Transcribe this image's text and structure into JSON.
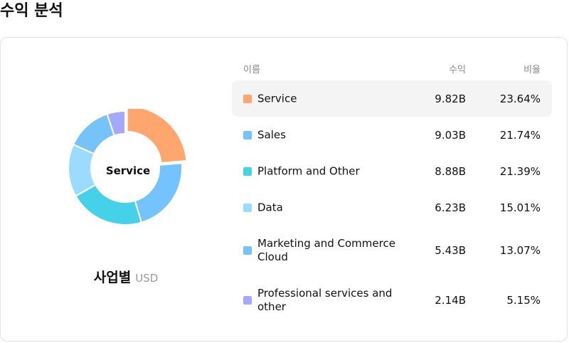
{
  "page": {
    "title": "수익 분석"
  },
  "donut": {
    "center_label": "Service"
  },
  "caption": {
    "title": "사업별",
    "unit": "USD"
  },
  "table": {
    "headers": {
      "name": "이름",
      "value": "수익",
      "share": "비율"
    }
  },
  "chart_data": {
    "type": "pie",
    "title": "",
    "categories": [
      "Service",
      "Sales",
      "Platform and Other",
      "Data",
      "Marketing and Commerce Cloud",
      "Professional services and other"
    ],
    "values": [
      9.82,
      9.03,
      8.88,
      6.23,
      5.43,
      2.14
    ],
    "value_labels": [
      "9.82B",
      "9.03B",
      "8.88B",
      "6.23B",
      "5.43B",
      "2.14B"
    ],
    "shares": [
      "23.64%",
      "21.74%",
      "21.39%",
      "15.01%",
      "13.07%",
      "5.15%"
    ],
    "share_values": [
      23.64,
      21.74,
      21.39,
      15.01,
      13.07,
      5.15
    ],
    "colors": [
      "#FFA56E",
      "#74C3FF",
      "#45D1E8",
      "#9ADBFF",
      "#76C3FA",
      "#A5A8FF"
    ],
    "selected": "Service"
  }
}
